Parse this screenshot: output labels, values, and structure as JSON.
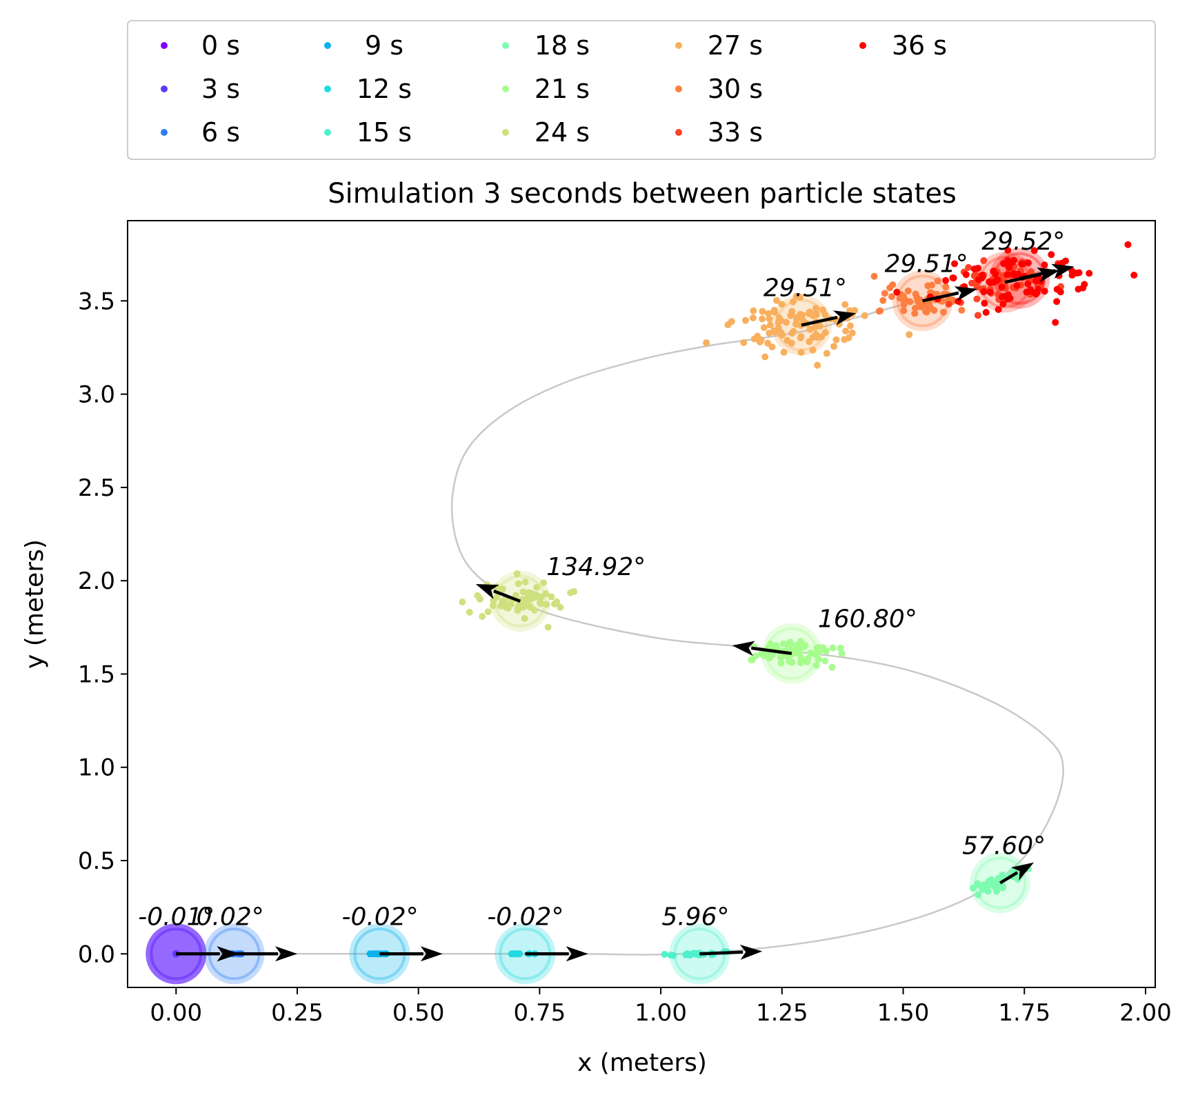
{
  "chart_data": {
    "type": "scatter",
    "title": "Simulation 3 seconds between particle states",
    "xlabel": "x (meters)",
    "ylabel": "y (meters)",
    "xlim": [
      -0.1,
      2.02
    ],
    "ylim": [
      -0.18,
      3.93
    ],
    "xticks": [
      0.0,
      0.25,
      0.5,
      0.75,
      1.0,
      1.25,
      1.5,
      1.75,
      2.0
    ],
    "xtick_labels": [
      "0.00",
      "0.25",
      "0.50",
      "0.75",
      "1.00",
      "1.25",
      "1.50",
      "1.75",
      "2.00"
    ],
    "yticks": [
      0.0,
      0.5,
      1.0,
      1.5,
      2.0,
      2.5,
      3.0,
      3.5
    ],
    "ytick_labels": [
      "0.0",
      "0.5",
      "1.0",
      "1.5",
      "2.0",
      "2.5",
      "3.0",
      "3.5"
    ],
    "grid": false,
    "legend_placement": "top, above plot, 6 columns",
    "trajectory_color": "#c8c8c8",
    "trajectory": [
      [
        0.0,
        0.0
      ],
      [
        0.4,
        0.0
      ],
      [
        0.8,
        0.0
      ],
      [
        1.05,
        0.0
      ],
      [
        1.3,
        0.06
      ],
      [
        1.5,
        0.17
      ],
      [
        1.65,
        0.32
      ],
      [
        1.75,
        0.52
      ],
      [
        1.81,
        0.77
      ],
      [
        1.83,
        1.0
      ],
      [
        1.8,
        1.15
      ],
      [
        1.7,
        1.33
      ],
      [
        1.55,
        1.49
      ],
      [
        1.4,
        1.58
      ],
      [
        1.2,
        1.64
      ],
      [
        1.0,
        1.69
      ],
      [
        0.8,
        1.8
      ],
      [
        0.7,
        1.9
      ],
      [
        0.62,
        2.03
      ],
      [
        0.58,
        2.2
      ],
      [
        0.57,
        2.45
      ],
      [
        0.6,
        2.7
      ],
      [
        0.68,
        2.9
      ],
      [
        0.8,
        3.06
      ],
      [
        0.95,
        3.18
      ],
      [
        1.1,
        3.26
      ],
      [
        1.3,
        3.34
      ],
      [
        1.5,
        3.48
      ],
      [
        1.7,
        3.6
      ],
      [
        1.8,
        3.67
      ]
    ],
    "series": [
      {
        "name": "0 s",
        "color": "#7f00ff",
        "robot": [
          0.0,
          0.0
        ],
        "angle_label": "-0.01°",
        "heading_deg": -0.01,
        "spread": [
          0.0,
          0.0
        ],
        "n": 6
      },
      {
        "name": "3 s",
        "color": "#5a3bfc",
        "robot": [
          0.0,
          0.0
        ],
        "angle_label": null,
        "heading_deg": 0.0,
        "spread": [
          0.0,
          0.0
        ],
        "n": 4
      },
      {
        "name": "6 s",
        "color": "#2c7ef3",
        "robot": [
          0.12,
          0.0
        ],
        "angle_label": "0.02°",
        "heading_deg": 0.02,
        "spread": [
          0.012,
          0.0
        ],
        "n": 10
      },
      {
        "name": "9 s",
        "color": "#0ab2eb",
        "robot": [
          0.42,
          0.0
        ],
        "angle_label": "-0.02°",
        "heading_deg": -0.02,
        "spread": [
          0.012,
          0.0
        ],
        "n": 10
      },
      {
        "name": "12 s",
        "color": "#22d9e0",
        "robot": [
          0.72,
          0.0
        ],
        "angle_label": "-0.02°",
        "heading_deg": -0.02,
        "spread": [
          0.014,
          0.0
        ],
        "n": 10
      },
      {
        "name": "15 s",
        "color": "#4ff0cc",
        "robot": [
          1.08,
          0.0
        ],
        "angle_label": "5.96°",
        "heading_deg": 5.96,
        "spread": [
          0.035,
          0.004
        ],
        "n": 20
      },
      {
        "name": "18 s",
        "color": "#7dfbb0",
        "robot": [
          1.7,
          0.38
        ],
        "angle_label": "57.60°",
        "heading_deg": 57.6,
        "spread": [
          0.045,
          0.015
        ],
        "n": 40
      },
      {
        "name": "21 s",
        "color": "#a7fc8e",
        "robot": [
          1.27,
          1.61
        ],
        "angle_label": "160.80°",
        "heading_deg": 160.8,
        "spread": [
          0.045,
          0.04
        ],
        "n": 70
      },
      {
        "name": "24 s",
        "color": "#cfe07f",
        "robot": [
          0.71,
          1.89
        ],
        "angle_label": "134.92°",
        "heading_deg": 134.92,
        "spread": [
          0.04,
          0.05
        ],
        "n": 70
      },
      {
        "name": "27 s",
        "color": "#f8af5e",
        "robot": [
          1.29,
          3.37
        ],
        "angle_label": "29.51°",
        "heading_deg": 29.51,
        "spread": [
          0.075,
          0.06
        ],
        "n": 100
      },
      {
        "name": "30 s",
        "color": "#fd7f41",
        "robot": [
          1.54,
          3.5
        ],
        "angle_label": "29.51°",
        "heading_deg": 29.51,
        "spread": [
          0.05,
          0.05
        ],
        "n": 60
      },
      {
        "name": "33 s",
        "color": "#fe4226",
        "robot": [
          1.71,
          3.6
        ],
        "angle_label": null,
        "heading_deg": 29.52,
        "spread": [
          0.06,
          0.05
        ],
        "n": 60
      },
      {
        "name": "36 s",
        "color": "#ff0000",
        "robot": [
          1.74,
          3.62
        ],
        "angle_label": "29.52°",
        "heading_deg": 29.52,
        "spread": [
          0.09,
          0.06
        ],
        "n": 90
      }
    ]
  }
}
